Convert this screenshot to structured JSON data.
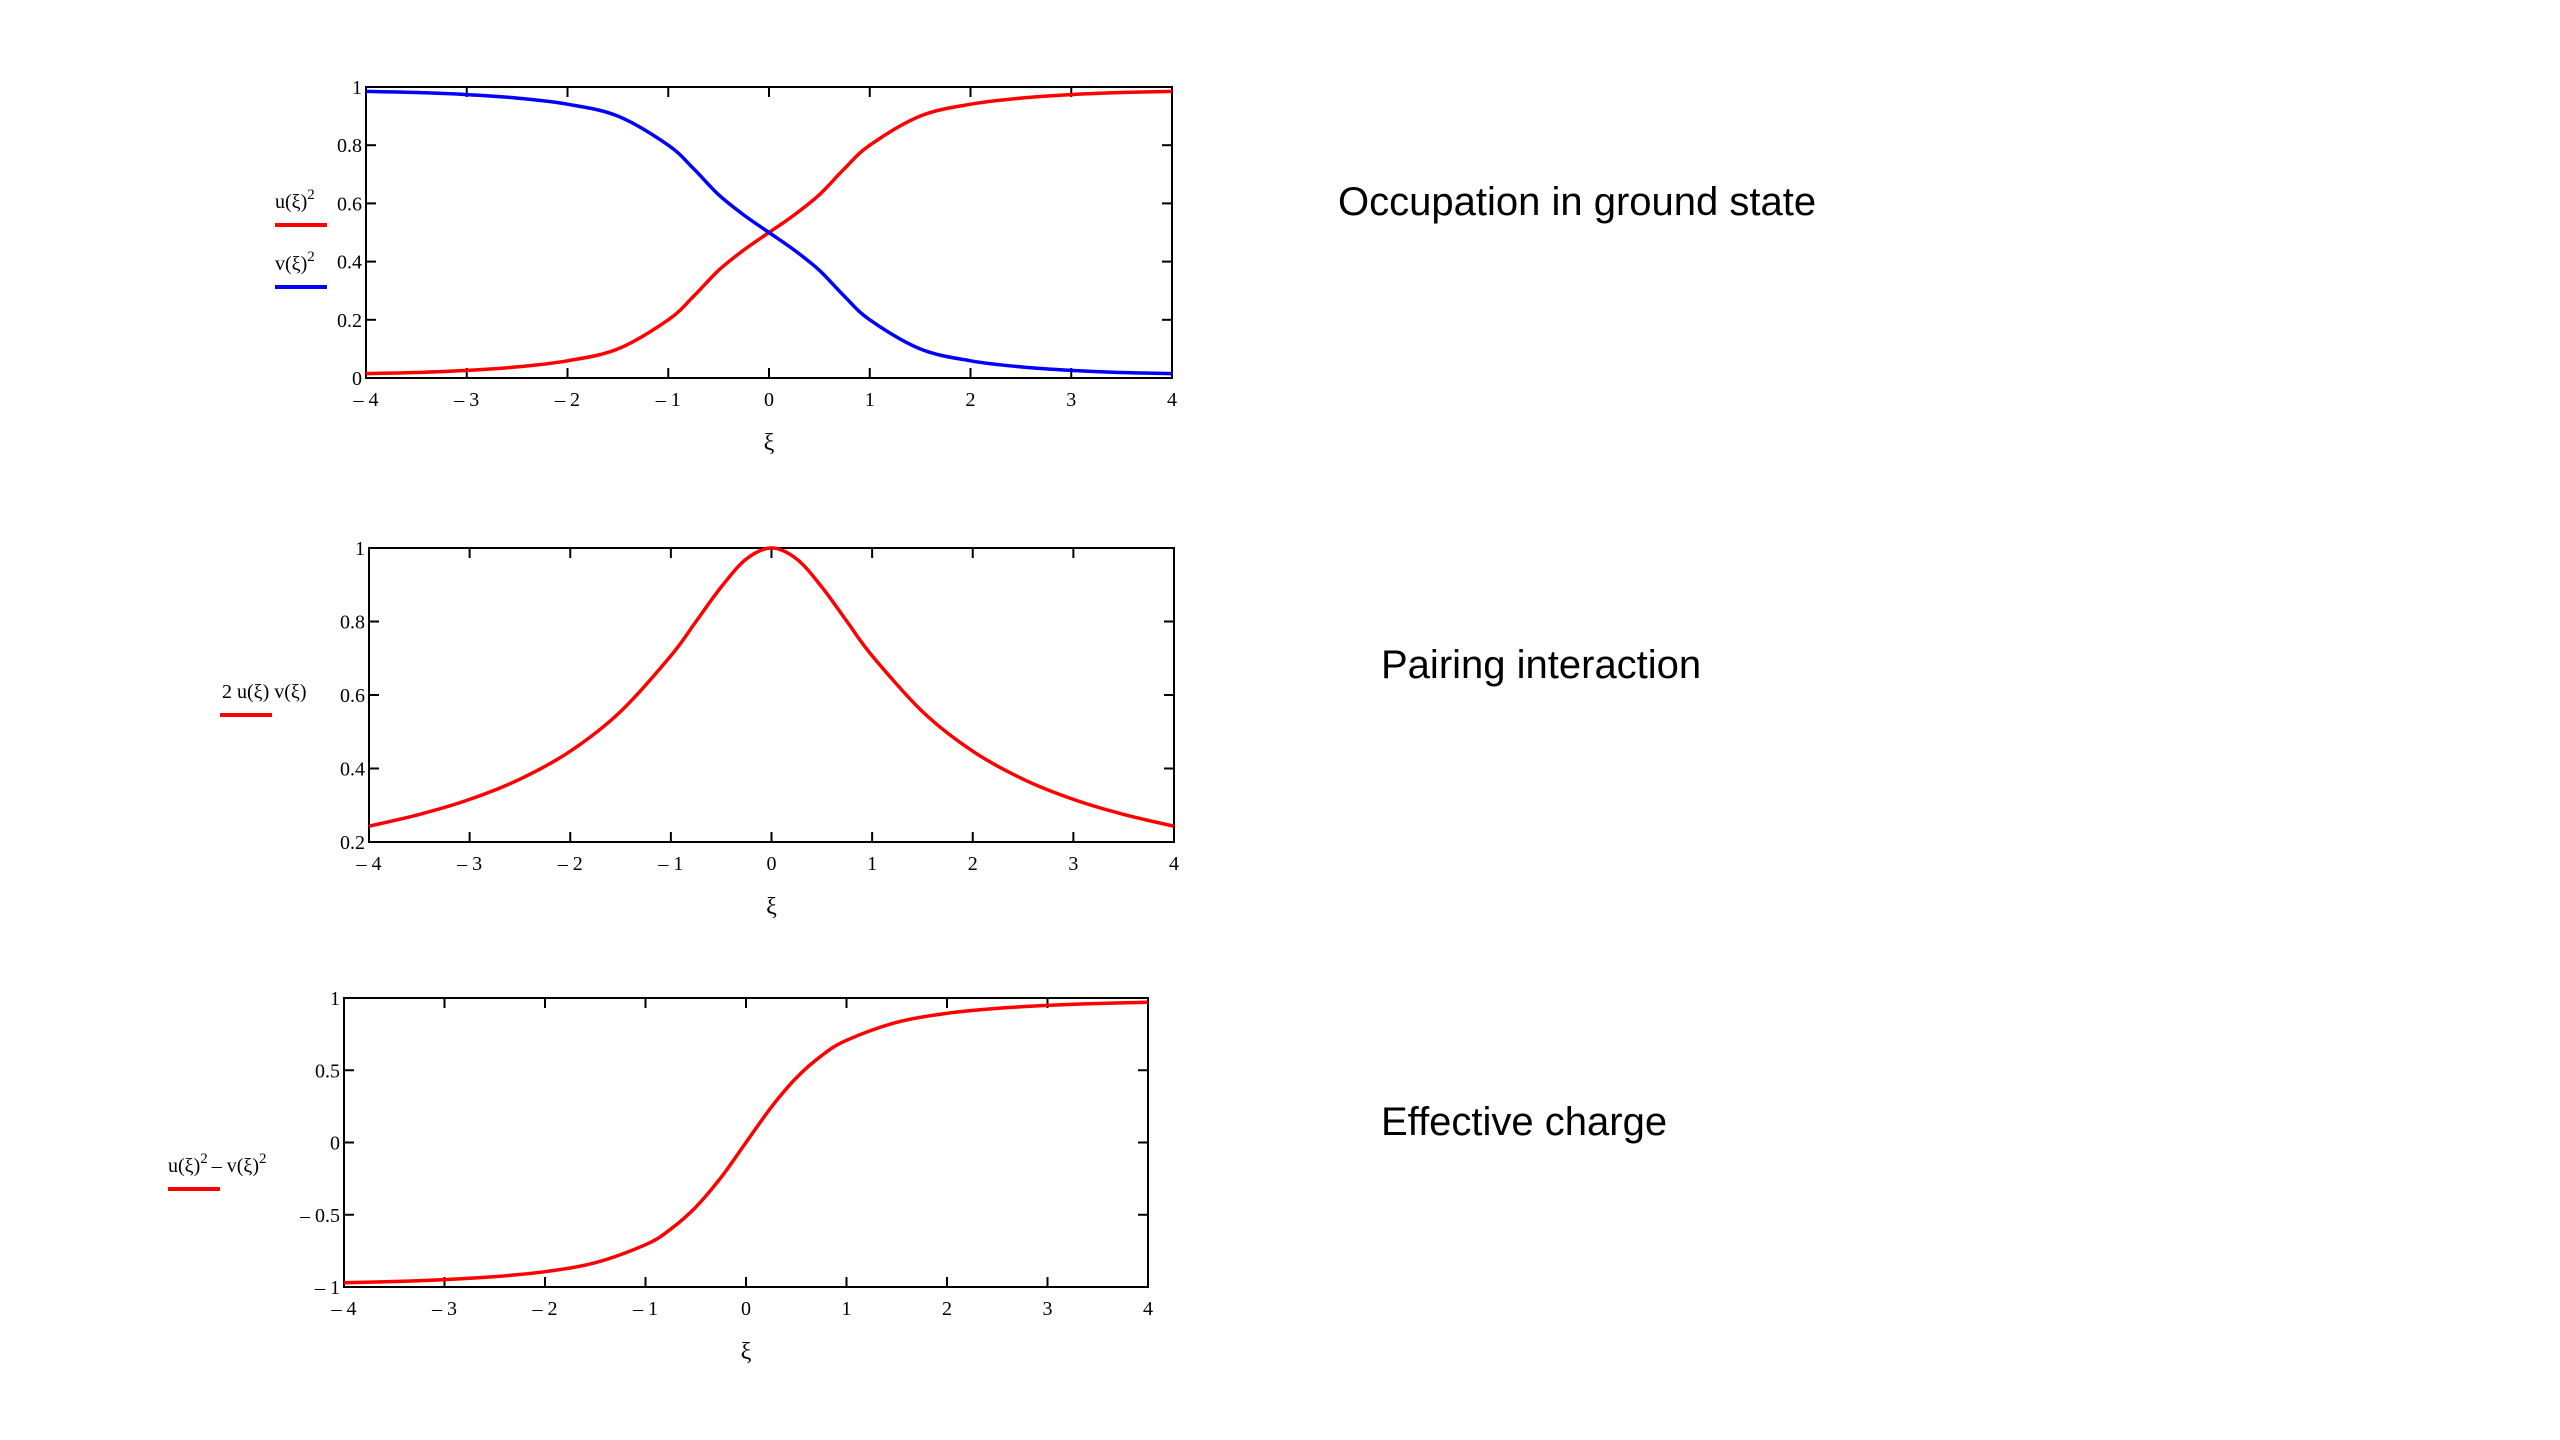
{
  "captions": {
    "c0": "Occupation in ground state",
    "c1": "Pairing interaction",
    "c2": "Effective charge"
  },
  "chart_data": [
    {
      "type": "line",
      "title": "",
      "xlabel": "ξ",
      "xlim": [
        -4,
        4
      ],
      "ylim": [
        0,
        1
      ],
      "x_ticks": [
        "– 4",
        "– 3",
        "– 2",
        "– 1",
        "0",
        "1",
        "2",
        "3",
        "4"
      ],
      "y_ticks": [
        "0",
        "0.2",
        "0.4",
        "0.6",
        "0.8",
        "1"
      ],
      "ylabel_lines": [
        {
          "text": "u(ξ)",
          "sup": "2",
          "color": "#ff0000"
        },
        {
          "text": "v(ξ)",
          "sup": "2",
          "color": "#0000ff"
        }
      ],
      "x": [
        -4,
        -3.5,
        -3,
        -2.5,
        -2,
        -1.5,
        -1,
        -0.75,
        -0.5,
        -0.25,
        0,
        0.25,
        0.5,
        0.75,
        1,
        1.5,
        2,
        2.5,
        3,
        3.5,
        4
      ],
      "series": [
        {
          "name": "u(ξ)²",
          "color": "#ff0000",
          "values": [
            0.015,
            0.019,
            0.026,
            0.038,
            0.059,
            0.1,
            0.2,
            0.28,
            0.37,
            0.44,
            0.5,
            0.56,
            0.63,
            0.72,
            0.8,
            0.9,
            0.941,
            0.962,
            0.974,
            0.981,
            0.985
          ]
        },
        {
          "name": "v(ξ)²",
          "color": "#0000ff",
          "values": [
            0.985,
            0.981,
            0.974,
            0.962,
            0.941,
            0.9,
            0.8,
            0.72,
            0.63,
            0.56,
            0.5,
            0.44,
            0.37,
            0.28,
            0.2,
            0.1,
            0.059,
            0.038,
            0.026,
            0.019,
            0.015
          ]
        }
      ]
    },
    {
      "type": "line",
      "title": "",
      "xlabel": "ξ",
      "xlim": [
        -4,
        4
      ],
      "ylim": [
        0.2,
        1
      ],
      "x_ticks": [
        "– 4",
        "– 3",
        "– 2",
        "– 1",
        "0",
        "1",
        "2",
        "3",
        "4"
      ],
      "y_ticks": [
        "0.2",
        "0.4",
        "0.6",
        "0.8",
        "1"
      ],
      "ylabel_lines": [
        {
          "text": "2 u(ξ)  v(ξ)",
          "sup": "",
          "color": "#ff0000"
        }
      ],
      "x": [
        -4,
        -3.5,
        -3,
        -2.5,
        -2,
        -1.5,
        -1,
        -0.75,
        -0.5,
        -0.25,
        0,
        0.25,
        0.5,
        0.75,
        1,
        1.5,
        2,
        2.5,
        3,
        3.5,
        4
      ],
      "series": [
        {
          "name": "2 u(ξ) v(ξ)",
          "color": "#ff0000",
          "values": [
            0.243,
            0.275,
            0.316,
            0.371,
            0.447,
            0.555,
            0.707,
            0.8,
            0.894,
            0.97,
            1,
            0.97,
            0.894,
            0.8,
            0.707,
            0.555,
            0.447,
            0.371,
            0.316,
            0.275,
            0.243
          ]
        }
      ]
    },
    {
      "type": "line",
      "title": "",
      "xlabel": "ξ",
      "xlim": [
        -4,
        4
      ],
      "ylim": [
        -1,
        1
      ],
      "x_ticks": [
        "– 4",
        "– 3",
        "– 2",
        "– 1",
        "0",
        "1",
        "2",
        "3",
        "4"
      ],
      "y_ticks": [
        "– 1",
        "– 0.5",
        "0",
        "0.5",
        "1"
      ],
      "ylabel_lines": [
        {
          "text": "u(ξ)",
          "sup": "2",
          "after": "– v(ξ)",
          "sup2": "2",
          "color": "#ff0000"
        }
      ],
      "x": [
        -4,
        -3.5,
        -3,
        -2.5,
        -2,
        -1.5,
        -1,
        -0.75,
        -0.5,
        -0.25,
        0,
        0.25,
        0.5,
        0.75,
        1,
        1.5,
        2,
        2.5,
        3,
        3.5,
        4
      ],
      "series": [
        {
          "name": "u(ξ)² – v(ξ)²",
          "color": "#ff0000",
          "values": [
            -0.97,
            -0.962,
            -0.949,
            -0.928,
            -0.894,
            -0.832,
            -0.707,
            -0.6,
            -0.447,
            -0.243,
            0,
            0.243,
            0.447,
            0.6,
            0.707,
            0.832,
            0.894,
            0.928,
            0.949,
            0.962,
            0.97
          ]
        }
      ]
    }
  ]
}
